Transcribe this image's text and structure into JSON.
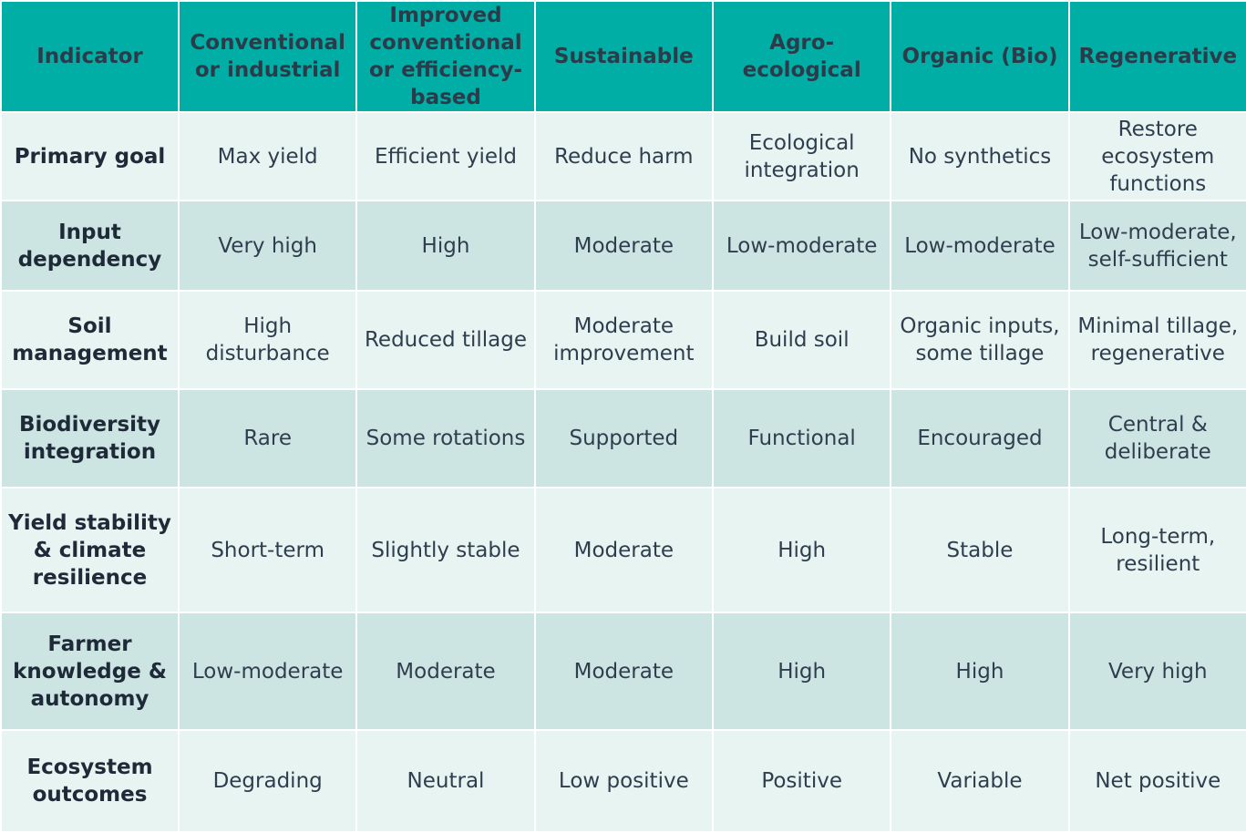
{
  "table": {
    "headers": [
      "Indicator",
      "Conventional or industrial",
      "Improved conventional or efficiency-based",
      "Sustainable",
      "Agro-ecological",
      "Organic (Bio)",
      "Regenerative"
    ],
    "rows": [
      {
        "indicator": "Primary goal",
        "values": [
          "Max yield",
          "Efficient yield",
          "Reduce harm",
          "Ecological integration",
          "No synthetics",
          "Restore ecosystem functions"
        ]
      },
      {
        "indicator": "Input dependency",
        "values": [
          "Very high",
          "High",
          "Moderate",
          "Low-moderate",
          "Low-moderate",
          "Low-moderate, self-sufficient"
        ]
      },
      {
        "indicator": "Soil management",
        "values": [
          "High disturbance",
          "Reduced tillage",
          "Moderate improvement",
          "Build soil",
          "Organic inputs, some tillage",
          "Minimal tillage, regenerative"
        ]
      },
      {
        "indicator": "Biodiversity integration",
        "values": [
          "Rare",
          "Some rotations",
          "Supported",
          "Functional",
          "Encouraged",
          "Central & deliberate"
        ]
      },
      {
        "indicator": "Yield stability & climate resilience",
        "values": [
          "Short-term",
          "Slightly stable",
          "Moderate",
          "High",
          "Stable",
          "Long-term, resilient"
        ]
      },
      {
        "indicator": "Farmer knowledge & autonomy",
        "values": [
          "Low-moderate",
          "Moderate",
          "Moderate",
          "High",
          "High",
          "Very high"
        ]
      },
      {
        "indicator": "Ecosystem outcomes",
        "values": [
          "Degrading",
          "Neutral",
          "Low positive",
          "Positive",
          "Variable",
          "Net positive"
        ]
      }
    ]
  },
  "colors": {
    "header_bg": "#01aea5",
    "row_light_bg": "#e8f4f2",
    "row_dark_bg": "#cde5e2",
    "text": "#2f3e4e"
  }
}
